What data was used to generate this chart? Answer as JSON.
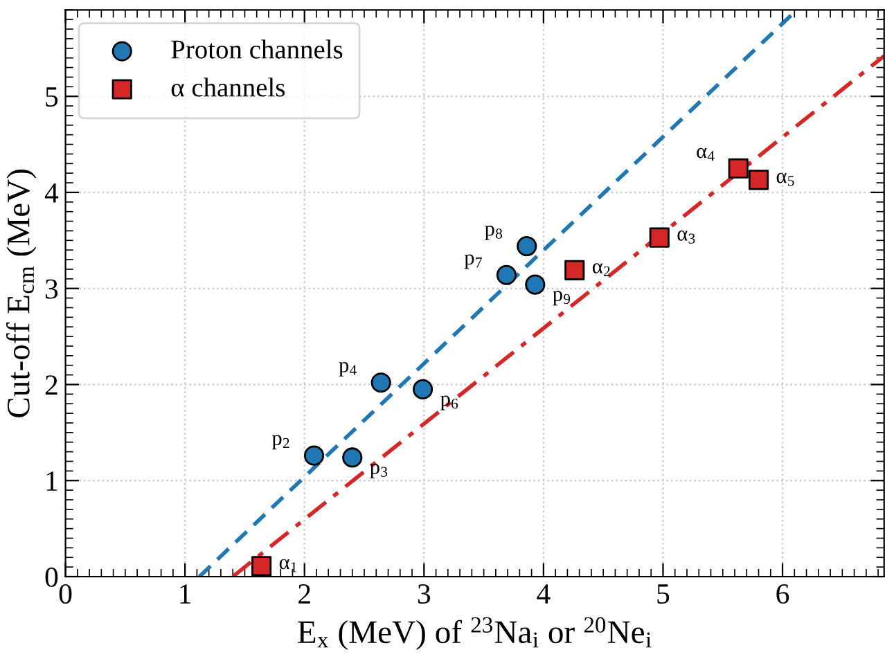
{
  "chart_data": {
    "type": "scatter",
    "xlabel": "E$_{x}$ (MeV) of $^{23}$Na$_{i}$ or $^{20}$Ne$_{i}$",
    "ylabel": "Cut-off E$_{cm}$ (MeV)",
    "xlim": [
      0,
      6.85
    ],
    "ylim": [
      0,
      5.9
    ],
    "xticks": [
      0,
      1,
      2,
      3,
      4,
      5,
      6
    ],
    "yticks": [
      0,
      1,
      2,
      3,
      4,
      5
    ],
    "grid": true,
    "legend": "top left",
    "series": [
      {
        "name": "Proton channels",
        "marker": "circle",
        "color": "#1f77b4",
        "x": [
          2.08,
          2.4,
          2.64,
          2.99,
          3.69,
          3.86,
          3.93
        ],
        "values": [
          1.26,
          1.24,
          2.02,
          1.95,
          3.14,
          3.44,
          3.04
        ]
      },
      {
        "name": "α channels",
        "marker": "square",
        "color": "#d62728",
        "x": [
          1.64,
          4.26,
          4.97,
          5.63,
          5.8
        ],
        "values": [
          0.11,
          3.19,
          3.53,
          4.25,
          4.13
        ]
      },
      {
        "type": "line",
        "line_style": "dashed",
        "color": "#1f77b4",
        "x": [
          1.12,
          6.12
        ],
        "values": [
          0,
          5.9
        ]
      },
      {
        "type": "line",
        "line_style": "dashdot",
        "color": "#d62728",
        "x": [
          1.4,
          6.85
        ],
        "values": [
          0,
          5.42
        ]
      }
    ],
    "annotations": [
      {
        "text": "p$_{2}$",
        "x": 2.08,
        "y": 1.26
      },
      {
        "text": "p$_{3}$",
        "x": 2.4,
        "y": 1.24
      },
      {
        "text": "p$_{4}$",
        "x": 2.64,
        "y": 2.02
      },
      {
        "text": "p$_{6}$",
        "x": 2.99,
        "y": 1.95
      },
      {
        "text": "p$_{7}$",
        "x": 3.69,
        "y": 3.14
      },
      {
        "text": "p$_{8}$",
        "x": 3.86,
        "y": 3.44
      },
      {
        "text": "p$_{9}$",
        "x": 3.93,
        "y": 3.04
      },
      {
        "text": "α$_{1}$",
        "x": 1.64,
        "y": 0.11
      },
      {
        "text": "α$_{2}$",
        "x": 4.26,
        "y": 3.19
      },
      {
        "text": "α$_{3}$",
        "x": 4.97,
        "y": 3.53
      },
      {
        "text": "α$_{4}$",
        "x": 5.63,
        "y": 4.25
      },
      {
        "text": "α$_{5}$",
        "x": 5.8,
        "y": 4.13
      }
    ]
  }
}
